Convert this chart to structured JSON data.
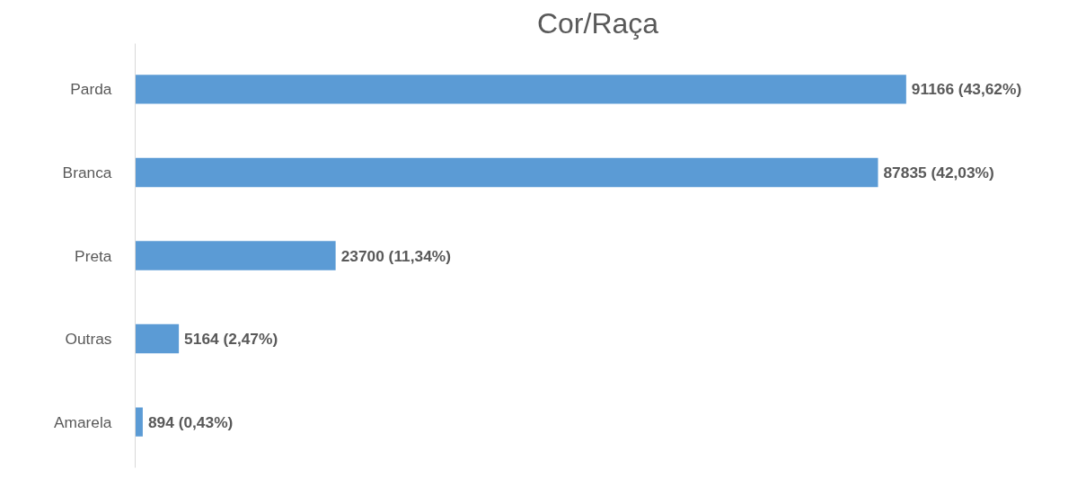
{
  "chart_data": {
    "type": "bar",
    "title": "Cor/Raça",
    "orientation": "horizontal",
    "categories": [
      "Parda",
      "Branca",
      "Preta",
      "Outras",
      "Amarela"
    ],
    "values": [
      91166,
      87835,
      23700,
      5164,
      894
    ],
    "value_labels": [
      "91166 (43,62%)",
      "87835 (42,03%)",
      "23700 (11,34%)",
      "5164 (2,47%)",
      "894 (0,43%)"
    ],
    "color": "#5b9bd5"
  }
}
